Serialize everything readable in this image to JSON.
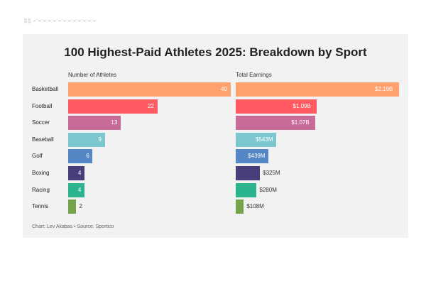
{
  "header_remnant": "░░ – – – – – – – – – – – – –",
  "chart_data": {
    "type": "bar",
    "orientation": "horizontal",
    "title": "100 Highest-Paid Athletes 2025: Breakdown by Sport",
    "categories": [
      "Basketball",
      "Football",
      "Soccer",
      "Baseball",
      "Golf",
      "Boxing",
      "Racing",
      "Tennis"
    ],
    "series": [
      {
        "name": "Number of Athletes",
        "values": [
          40,
          22,
          13,
          9,
          6,
          4,
          4,
          2
        ],
        "labels": [
          "40",
          "22",
          "13",
          "9",
          "6",
          "4",
          "4",
          "2"
        ],
        "xlim": [
          0,
          40
        ]
      },
      {
        "name": "Total Earnings",
        "values": [
          2.19,
          1.09,
          1.07,
          0.543,
          0.439,
          0.325,
          0.28,
          0.108
        ],
        "labels": [
          "$2.19B",
          "$1.09B",
          "$1.07B",
          "$543M",
          "$439M",
          "$325M",
          "$280M",
          "$108M"
        ],
        "unit": "billion USD",
        "xlim": [
          0,
          2.19
        ]
      }
    ],
    "colors": [
      "#ffa16c",
      "#ff5a61",
      "#c96b98",
      "#7cc6cf",
      "#5587c5",
      "#4a3e7a",
      "#2bb38e",
      "#75a54b"
    ],
    "footer": "Chart: Lev Akabas • Source: Sportico"
  }
}
